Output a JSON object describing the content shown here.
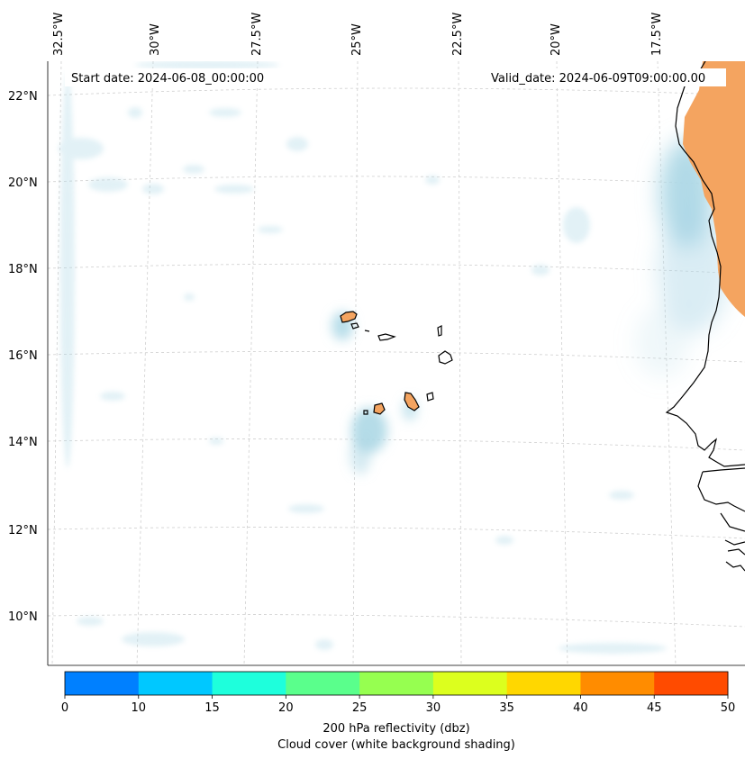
{
  "map": {
    "start_date": "Start date: 2024-06-08_00:00:00",
    "valid_date": "Valid_date: 2024-06-09T09:00:00.00",
    "lon_labels": [
      "32.5°W",
      "30°W",
      "27.5°W",
      "25°W",
      "22.5°W",
      "20°W",
      "17.5°W"
    ],
    "lat_labels": [
      "22°N",
      "20°N",
      "18°N",
      "16°N",
      "14°N",
      "12°N",
      "10°N"
    ],
    "gridlines": true,
    "colors": {
      "cloud": "#add8e6",
      "land_fill": "#f4a460",
      "coast": "#000000",
      "grid": "#cccccc"
    }
  },
  "colorbar": {
    "ticks": [
      "0",
      "10",
      "15",
      "20",
      "25",
      "30",
      "35",
      "40",
      "45",
      "50"
    ],
    "colors": [
      "#0080ff",
      "#00c8ff",
      "#1effdc",
      "#5aff8c",
      "#96ff50",
      "#dcff1e",
      "#ffd700",
      "#ff8c00",
      "#ff4b00"
    ],
    "label_line1": "200 hPa reflectivity (dbz)",
    "label_line2": "Cloud cover (white background shading)"
  }
}
